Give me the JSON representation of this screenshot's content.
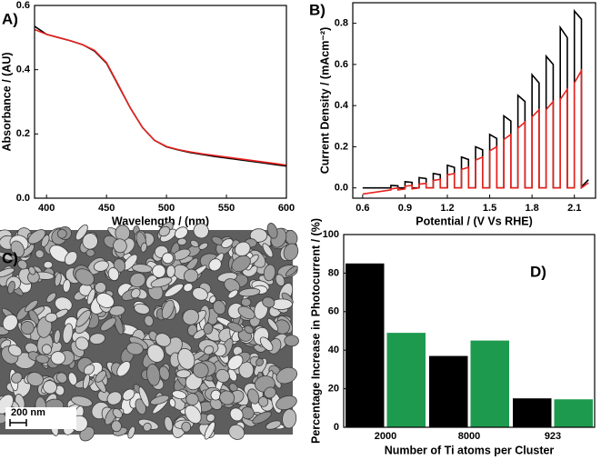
{
  "chart_data": [
    {
      "type": "line",
      "panel_label": "A)",
      "x_label": "Wavelength / (nm)",
      "y_label": "Absorbance / (AU)",
      "x": [
        390,
        400,
        410,
        420,
        430,
        440,
        450,
        460,
        470,
        480,
        490,
        500,
        510,
        520,
        530,
        540,
        550,
        560,
        570,
        580,
        590,
        600
      ],
      "series": [
        {
          "color": "#000000",
          "values": [
            0.535,
            0.51,
            0.5,
            0.49,
            0.478,
            0.458,
            0.42,
            0.35,
            0.28,
            0.22,
            0.18,
            0.16,
            0.15,
            0.142,
            0.136,
            0.13,
            0.125,
            0.12,
            0.115,
            0.11,
            0.105,
            0.1
          ]
        },
        {
          "color": "#e8231f",
          "values": [
            0.525,
            0.51,
            0.5,
            0.49,
            0.478,
            0.46,
            0.422,
            0.352,
            0.28,
            0.22,
            0.18,
            0.161,
            0.151,
            0.144,
            0.138,
            0.133,
            0.128,
            0.123,
            0.118,
            0.113,
            0.108,
            0.103
          ]
        }
      ],
      "xlim": [
        390,
        600
      ],
      "xticks": [
        400,
        450,
        500,
        550,
        600
      ],
      "ylim": [
        0,
        0.6
      ],
      "yticks": [
        {
          "value": 0,
          "label": "0.0"
        },
        0.2,
        0.4,
        0.6
      ]
    },
    {
      "type": "line",
      "panel_label": "B)",
      "x_label": "Potential / (V Vs RHE)",
      "y_label": "Current Density / (mAcm⁻²)",
      "x": [
        0.6,
        0.8,
        0.8,
        0.85,
        0.85,
        0.9,
        0.9,
        0.95,
        0.95,
        1.0,
        1.0,
        1.05,
        1.05,
        1.1,
        1.1,
        1.15,
        1.15,
        1.2,
        1.2,
        1.25,
        1.25,
        1.3,
        1.3,
        1.35,
        1.35,
        1.4,
        1.4,
        1.45,
        1.45,
        1.5,
        1.5,
        1.55,
        1.55,
        1.6,
        1.6,
        1.65,
        1.65,
        1.7,
        1.7,
        1.75,
        1.75,
        1.8,
        1.8,
        1.85,
        1.85,
        1.9,
        1.9,
        1.95,
        1.95,
        2.0,
        2.0,
        2.05,
        2.05,
        2.1,
        2.1,
        2.15,
        2.15,
        2.2
      ],
      "series": [
        {
          "color": "#000000",
          "values": [
            0.0,
            0.0,
            0.012,
            0.01,
            0.0,
            0.0,
            0.03,
            0.027,
            0.0,
            0.0,
            0.05,
            0.045,
            0.0,
            0.0,
            0.07,
            0.064,
            0.0,
            0.0,
            0.11,
            0.1,
            0.0,
            0.0,
            0.15,
            0.138,
            0.0,
            0.0,
            0.2,
            0.185,
            0.0,
            0.0,
            0.26,
            0.24,
            0.0,
            0.0,
            0.35,
            0.325,
            0.0,
            0.0,
            0.45,
            0.42,
            0.0,
            0.0,
            0.55,
            0.51,
            0.0,
            0.0,
            0.64,
            0.6,
            0.0,
            0.0,
            0.78,
            0.73,
            0.0,
            0.0,
            0.86,
            0.82,
            0.005,
            0.04
          ]
        },
        {
          "color": "#e8231f",
          "values": [
            -0.03,
            -0.01,
            -0.005,
            0.0,
            -0.01,
            -0.005,
            0.008,
            0.012,
            -0.005,
            0.0,
            0.018,
            0.022,
            0.0,
            0.0,
            0.036,
            0.042,
            0.0,
            0.0,
            0.063,
            0.07,
            0.0,
            0.0,
            0.09,
            0.1,
            0.0,
            0.0,
            0.135,
            0.15,
            0.0,
            0.0,
            0.18,
            0.2,
            0.0,
            0.0,
            0.235,
            0.26,
            0.0,
            0.0,
            0.29,
            0.32,
            0.0,
            0.0,
            0.345,
            0.38,
            0.0,
            0.0,
            0.38,
            0.42,
            0.0,
            0.0,
            0.43,
            0.48,
            0.0,
            0.0,
            0.51,
            0.57,
            0.0,
            0.025
          ]
        }
      ],
      "xlim": [
        0.53,
        2.25
      ],
      "xticks": [
        0.6,
        0.9,
        1.2,
        1.5,
        1.8,
        2.1
      ],
      "ylim": [
        -0.05,
        0.9
      ],
      "yticks": [
        {
          "value": 0,
          "label": "0.0"
        },
        0.2,
        0.4,
        0.6,
        0.8
      ]
    },
    {
      "type": "image",
      "panel_label": "C)",
      "scale_bar": "200 nm"
    },
    {
      "type": "bar",
      "panel_label": "D)",
      "x_label": "Number of Ti atoms per Cluster",
      "y_label": "Percentage Increase in Photocurrent / (%)",
      "categories": [
        "2000",
        "8000",
        "923"
      ],
      "series": [
        {
          "color": "#000000",
          "values": [
            85,
            37,
            15
          ]
        },
        {
          "color": "#1e9a4f",
          "values": [
            49,
            45,
            14.5
          ]
        }
      ],
      "ylim": [
        0,
        100
      ],
      "yticks": [
        0,
        20,
        40,
        60,
        80,
        100
      ]
    }
  ]
}
